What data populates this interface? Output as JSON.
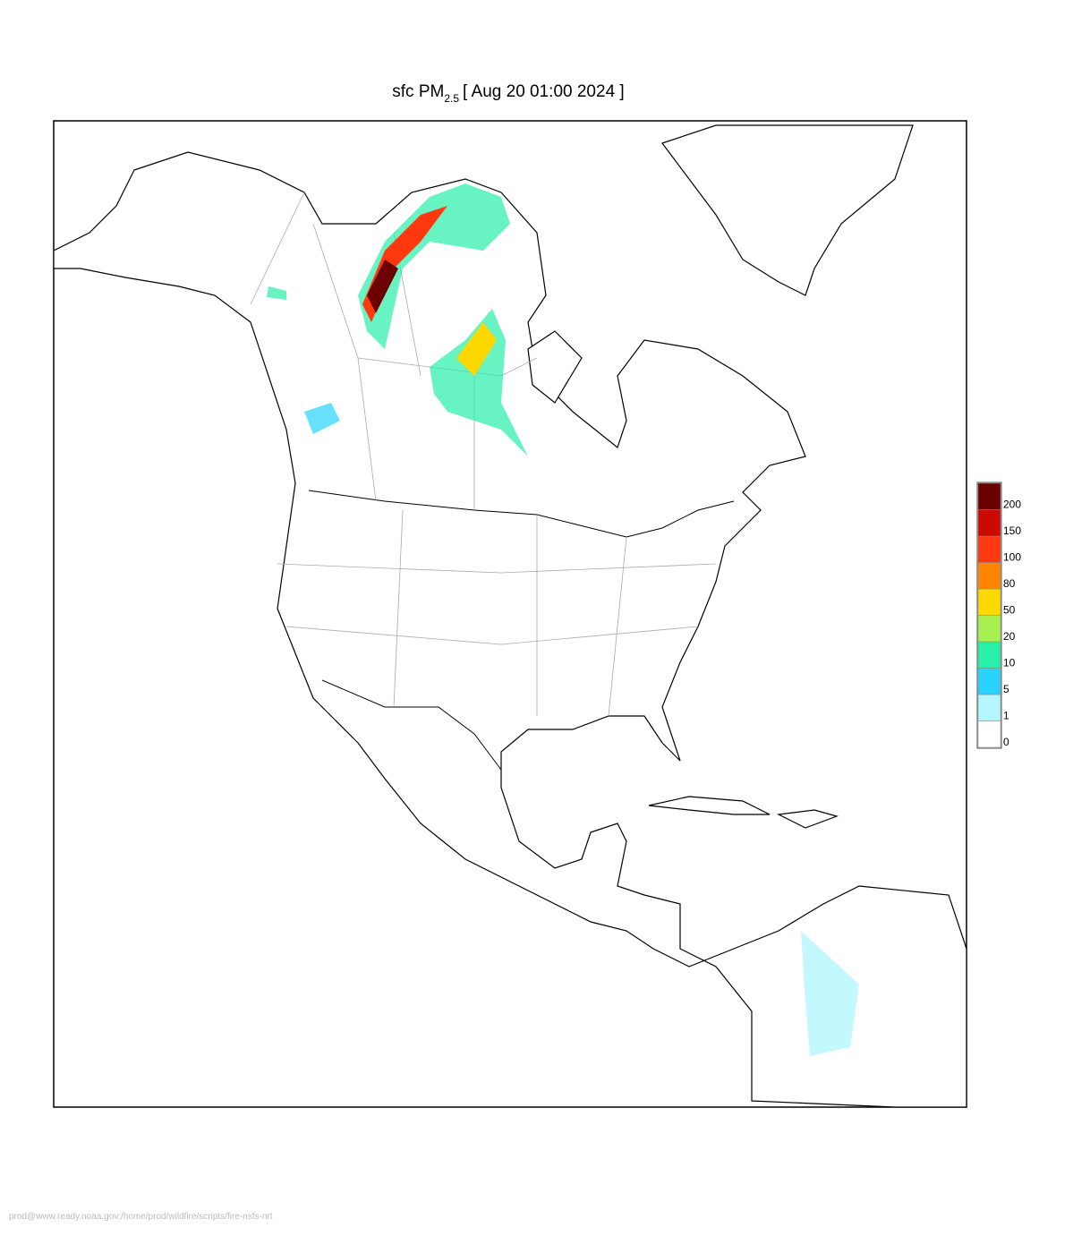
{
  "title": {
    "main": "sfc PM",
    "subscript": "2.5",
    "rest": "[ Aug 20 01:00 2024 ]"
  },
  "legend": {
    "levels": [
      0,
      1,
      5,
      10,
      20,
      50,
      80,
      100,
      150,
      200
    ],
    "colors": [
      "#ffffff",
      "#b4f6ff",
      "#28d4ff",
      "#28f0a8",
      "#a8f050",
      "#ffd800",
      "#ff8400",
      "#ff3810",
      "#cc0a00",
      "#6c0000"
    ]
  },
  "footer": "prod@www.ready.noaa.gov:/home/prod/wildfire/scripts/fire-nsfs-nrt"
}
